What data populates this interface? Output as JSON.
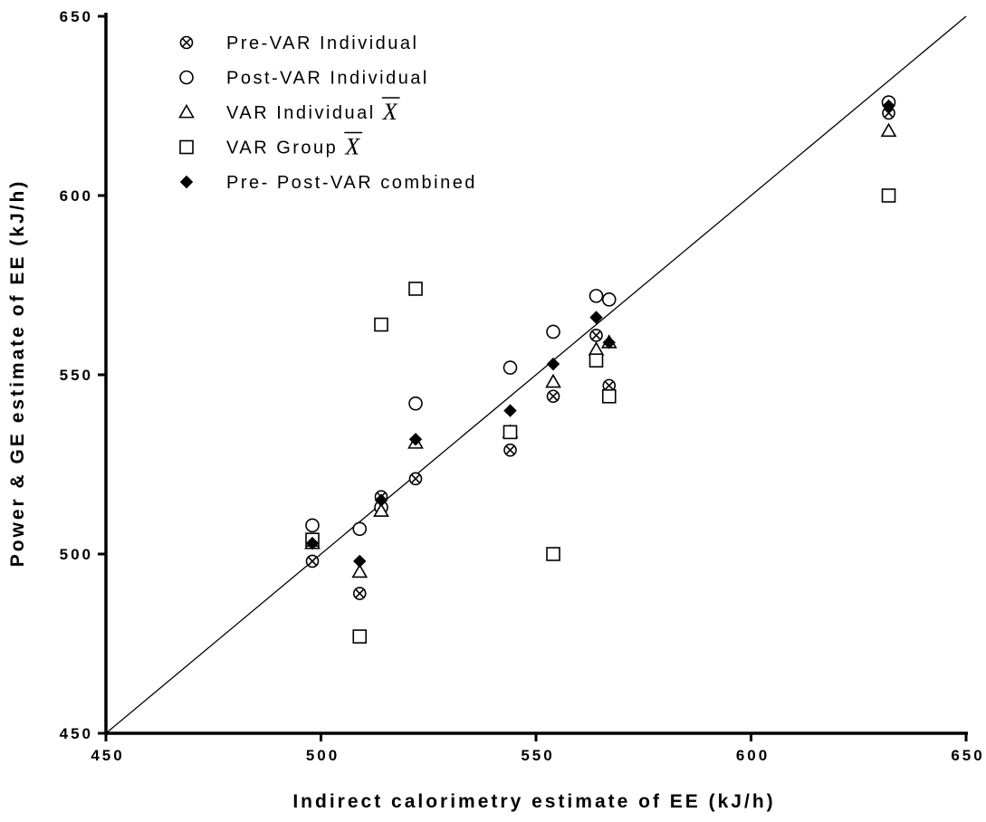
{
  "chart_data": {
    "type": "scatter",
    "title": "",
    "xlabel": "Indirect calorimetry estimate of EE (kJ/h)",
    "ylabel": "Power & GE estimate of EE (kJ/h)",
    "xlim": [
      450,
      650
    ],
    "ylim": [
      450,
      650
    ],
    "x_ticks": [
      "450",
      "500",
      "550",
      "600",
      "650"
    ],
    "y_ticks": [
      "450",
      "500",
      "550",
      "600",
      "650"
    ],
    "grid": false,
    "legend_position": "top-left",
    "identity_line": {
      "from": [
        450,
        450
      ],
      "to": [
        650,
        650
      ]
    },
    "series": [
      {
        "name": "Pre-VAR Individual",
        "marker": "circle-x",
        "points": [
          [
            498,
            498
          ],
          [
            509,
            489
          ],
          [
            514,
            516
          ],
          [
            514,
            513
          ],
          [
            522,
            521
          ],
          [
            544,
            529
          ],
          [
            554,
            544
          ],
          [
            564,
            561
          ],
          [
            567,
            547
          ],
          [
            632,
            623
          ]
        ]
      },
      {
        "name": "Post-VAR Individual",
        "marker": "circle-open",
        "points": [
          [
            498,
            508
          ],
          [
            509,
            507
          ],
          [
            514,
            513
          ],
          [
            522,
            542
          ],
          [
            544,
            552
          ],
          [
            554,
            562
          ],
          [
            564,
            572
          ],
          [
            567,
            571
          ],
          [
            632,
            626
          ]
        ]
      },
      {
        "name": "VAR Individual",
        "name_suffix": "X",
        "marker": "triangle-open",
        "points": [
          [
            498,
            503
          ],
          [
            509,
            495
          ],
          [
            514,
            512
          ],
          [
            522,
            531
          ],
          [
            544,
            534
          ],
          [
            554,
            548
          ],
          [
            564,
            557
          ],
          [
            567,
            559
          ],
          [
            632,
            618
          ]
        ]
      },
      {
        "name": "VAR Group",
        "name_suffix": "X",
        "marker": "square-open",
        "points": [
          [
            498,
            504
          ],
          [
            509,
            477
          ],
          [
            514,
            564
          ],
          [
            522,
            574
          ],
          [
            544,
            534
          ],
          [
            554,
            500
          ],
          [
            564,
            554
          ],
          [
            567,
            544
          ],
          [
            632,
            600
          ]
        ]
      },
      {
        "name": "Pre- Post-VAR combined",
        "marker": "diamond-filled",
        "points": [
          [
            498,
            503
          ],
          [
            509,
            498
          ],
          [
            514,
            515
          ],
          [
            522,
            532
          ],
          [
            544,
            540
          ],
          [
            554,
            553
          ],
          [
            564,
            566
          ],
          [
            567,
            559
          ],
          [
            632,
            625
          ]
        ]
      }
    ]
  }
}
